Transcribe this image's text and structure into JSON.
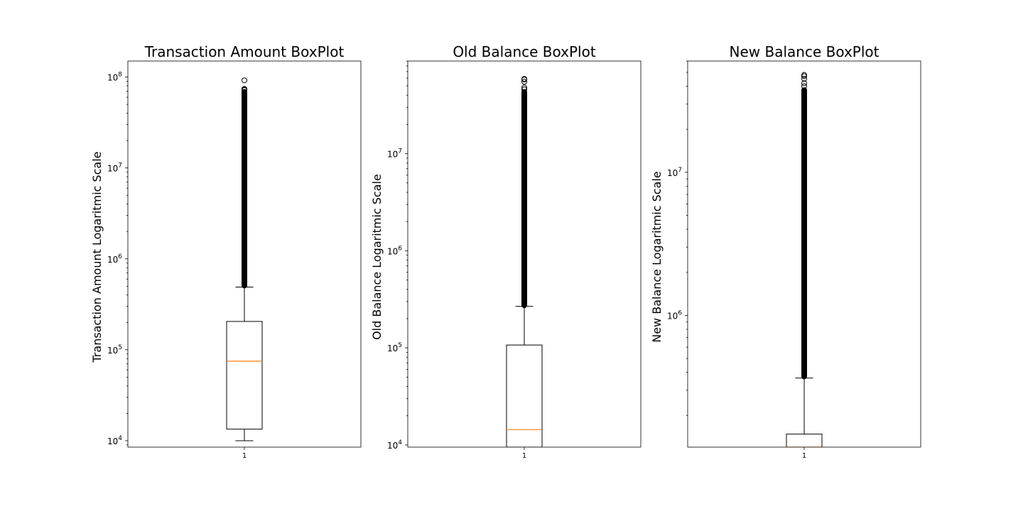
{
  "chart_data": [
    {
      "type": "boxplot",
      "title": "Transaction Amount BoxPlot",
      "ylabel": "Transaction Amount Logaritmic Scale",
      "xlabel": "",
      "categories": [
        "1"
      ],
      "yscale": "log",
      "ylim": [
        8500,
        150000000
      ],
      "yticks": [
        {
          "value": 10000,
          "mant": "10",
          "exp": "4"
        },
        {
          "value": 100000,
          "mant": "10",
          "exp": "5"
        },
        {
          "value": 1000000,
          "mant": "10",
          "exp": "6"
        },
        {
          "value": 10000000,
          "mant": "10",
          "exp": "7"
        },
        {
          "value": 100000000,
          "mant": "10",
          "exp": "8"
        }
      ],
      "box": {
        "whisker_low": 10000,
        "q1": 13400,
        "median": 75000,
        "q3": 205000,
        "whisker_high": 490000,
        "outlier_band": [
          500000,
          70000000
        ],
        "outliers": [
          72000000,
          73000000,
          74000000,
          92000000
        ]
      },
      "median_color": "#ff7f0e"
    },
    {
      "type": "boxplot",
      "title": "Old Balance BoxPlot",
      "ylabel": "Old Balance Logaritmic Scale",
      "xlabel": "",
      "categories": [
        "1"
      ],
      "yscale": "log",
      "ylim": [
        9500,
        90000000
      ],
      "yticks": [
        {
          "value": 10000,
          "mant": "10",
          "exp": "4"
        },
        {
          "value": 100000,
          "mant": "10",
          "exp": "5"
        },
        {
          "value": 1000000,
          "mant": "10",
          "exp": "6"
        },
        {
          "value": 10000000,
          "mant": "10",
          "exp": "7"
        }
      ],
      "box": {
        "whisker_low": 9500,
        "q1": 9500,
        "median": 14400,
        "q3": 107000,
        "whisker_high": 268000,
        "outlier_band": [
          270000,
          44000000
        ],
        "outliers": [
          46000000,
          48000000,
          55000000,
          58000000,
          59000000
        ]
      },
      "median_color": "#ff7f0e"
    },
    {
      "type": "boxplot",
      "title": "New Balance BoxPlot",
      "ylabel": "New Balance Logaritmic Scale",
      "xlabel": "",
      "categories": [
        "1"
      ],
      "yscale": "log",
      "ylim": [
        120000,
        60000000
      ],
      "yticks": [
        {
          "value": 1000000,
          "mant": "10",
          "exp": "6"
        },
        {
          "value": 10000000,
          "mant": "10",
          "exp": "7"
        }
      ],
      "box": {
        "whisker_low": 120000,
        "q1": 120000,
        "median": 120000,
        "q3": 148000,
        "whisker_high": 365000,
        "outlier_band": [
          370000,
          38000000
        ],
        "outliers": [
          40000000,
          42000000,
          45000000,
          47000000,
          48000000
        ]
      },
      "median_color": "#ff7f0e"
    }
  ]
}
